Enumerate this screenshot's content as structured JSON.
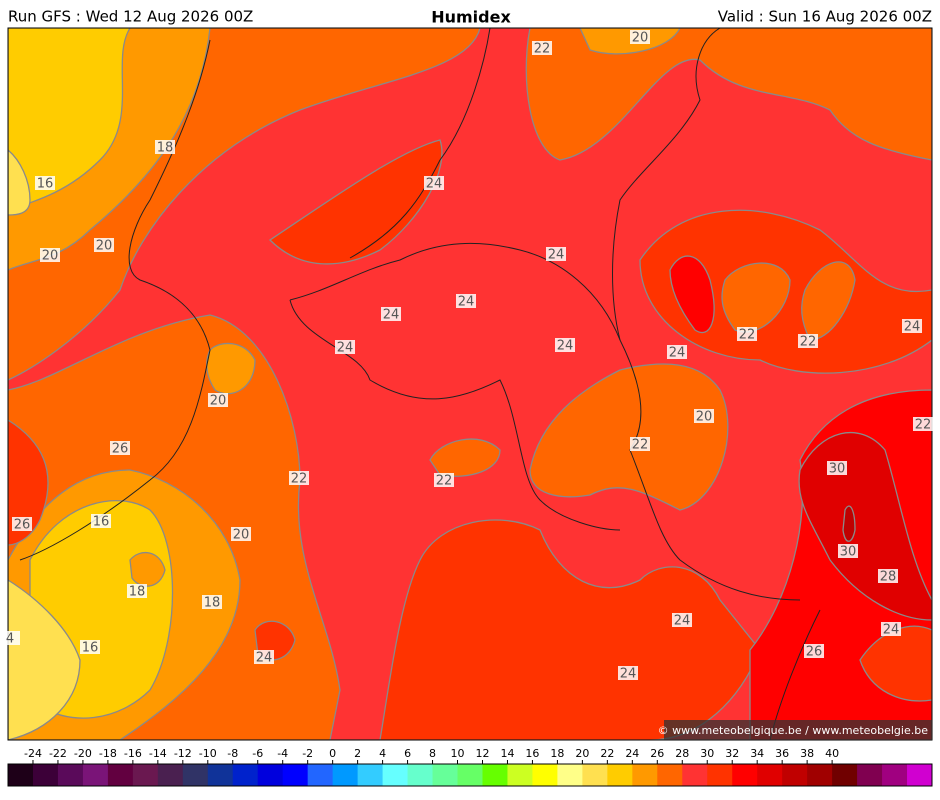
{
  "header": {
    "run": "Run GFS : Wed 12 Aug 2026 00Z",
    "title": "Humidex",
    "valid": "Valid : Sun 16 Aug 2026 00Z"
  },
  "contour_labels": [
    22,
    20,
    18,
    16,
    24,
    20,
    20,
    24,
    24,
    24,
    24,
    22,
    22,
    24,
    24,
    24,
    20,
    20,
    22,
    22,
    26,
    30,
    22,
    22,
    26,
    16,
    20,
    30,
    28,
    18,
    18,
    24,
    4,
    16,
    24,
    24,
    26,
    24
  ],
  "copyright": "© www.meteobelgique.be / www.meteobelgie.be",
  "colorbar": {
    "ticks": [
      -24,
      -22,
      -20,
      -18,
      -16,
      -14,
      -12,
      -10,
      -8,
      -6,
      -4,
      -2,
      0,
      2,
      4,
      6,
      8,
      10,
      12,
      14,
      16,
      18,
      20,
      22,
      24,
      26,
      28,
      30,
      32,
      34,
      36,
      38,
      40
    ],
    "colors": [
      "#1e0018",
      "#3c0038",
      "#5a0a5a",
      "#7a1478",
      "#620040",
      "#6a1850",
      "#4a2050",
      "#303366",
      "#103399",
      "#0022cc",
      "#0000dd",
      "#0000ff",
      "#2266ff",
      "#0099ff",
      "#33ccff",
      "#66ffff",
      "#66ffcc",
      "#66ff99",
      "#66ff66",
      "#66ff00",
      "#ccff22",
      "#ffff00",
      "#ffff88",
      "#ffe050",
      "#ffcc00",
      "#ff9900",
      "#ff6600",
      "#ff3333",
      "#ff3300",
      "#ff0000",
      "#e00000",
      "#c00000",
      "#a00000",
      "#700000",
      "#800050",
      "#a00080",
      "#d000d0"
    ]
  }
}
